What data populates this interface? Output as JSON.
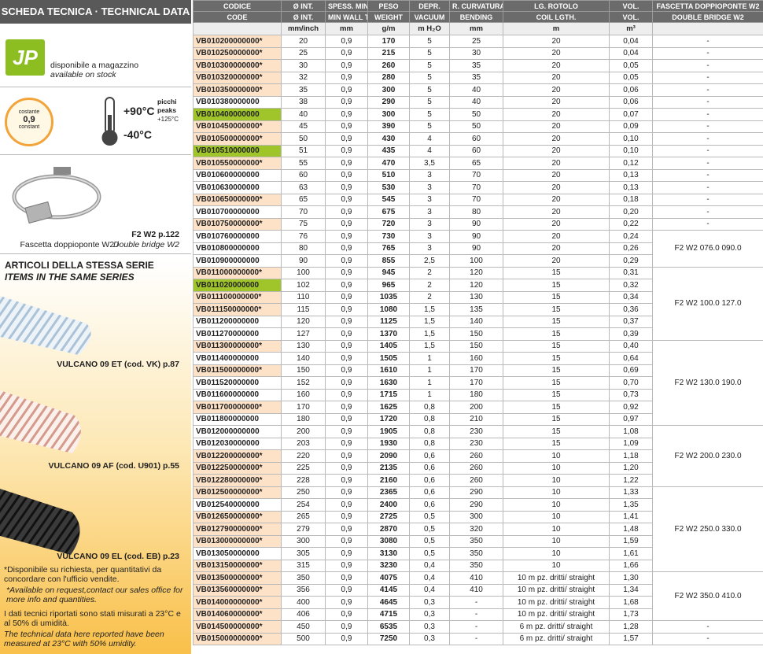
{
  "sidebar": {
    "title": "SCHEDA TECNICA · TECHNICAL DATA",
    "stock": {
      "logo": "JP",
      "it": "disponibile a magazzino",
      "en": "available on stock"
    },
    "thickness": {
      "top": "costante",
      "value": "0,9",
      "bottom": "constant"
    },
    "temperature": {
      "max": "+90°C",
      "peaks_it": "picchi",
      "peaks_en": "peaks",
      "peak": "+125°C",
      "min": "-40°C"
    },
    "clamp": {
      "code": "F2 W2 p.122",
      "desc_it": "Fascetta doppioponte W2 /",
      "desc_en": "Double bridge W2"
    },
    "series": {
      "title_it": "ARTICOLI DELLA STESSA SERIE",
      "title_en": "ITEMS IN THE SAME SERIES",
      "items": [
        "VULCANO 09 ET (cod. VK) p.87",
        "VULCANO 09 AF (cod. U901) p.55",
        "VULCANO 09 EL (cod. EB) p.23"
      ]
    },
    "notes": [
      "*Disponibile su richiesta, per quantitativi da concordare con l'ufficio vendite.",
      "*Available on request,contact our sales office for more info and quantities.",
      "I dati tecnici riportati sono stati misurati a 23°C e al 50% di umidità.",
      "The technical data here reported have been measured at 23°C with 50% umidity."
    ]
  },
  "table": {
    "header_it": [
      "CODICE",
      "Ø INT.",
      "SPESS. MIN.",
      "PESO",
      "DEPR.",
      "R. CURVATURA",
      "LG. ROTOLO",
      "VOL.",
      "FASCETTA DOPPIOPONTE W2"
    ],
    "header_en": [
      "CODE",
      "Ø INT.",
      "MIN WALL TH.",
      "WEIGHT",
      "VACUUM",
      "BENDING",
      "COIL LGTH.",
      "VOL.",
      "DOUBLE BRIDGE W2"
    ],
    "units": [
      "mm/inch",
      "mm",
      "g/m",
      "m H₂O",
      "mm",
      "m",
      "m³"
    ],
    "rows": [
      {
        "cells": [
          "VB010200000000*",
          "20",
          "0,9",
          "170",
          "5",
          "25",
          "20",
          "0,04",
          "-"
        ],
        "code_color": "#fde2c8"
      },
      {
        "cells": [
          "VB010250000000*",
          "25",
          "0,9",
          "215",
          "5",
          "30",
          "20",
          "0,04",
          "-"
        ],
        "code_color": "#fde2c8"
      },
      {
        "cells": [
          "VB010300000000*",
          "30",
          "0,9",
          "260",
          "5",
          "35",
          "20",
          "0,05",
          "-"
        ],
        "code_color": "#fde2c8"
      },
      {
        "cells": [
          "VB010320000000*",
          "32",
          "0,9",
          "280",
          "5",
          "35",
          "20",
          "0,05",
          "-"
        ],
        "code_color": "#fde2c8"
      },
      {
        "cells": [
          "VB010350000000*",
          "35",
          "0,9",
          "300",
          "5",
          "40",
          "20",
          "0,06",
          "-"
        ],
        "code_color": "#fde2c8"
      },
      {
        "cells": [
          "VB010380000000",
          "38",
          "0,9",
          "290",
          "5",
          "40",
          "20",
          "0,06",
          "-"
        ],
        "code_color": "#ffffff"
      },
      {
        "cells": [
          "VB010400000000",
          "40",
          "0,9",
          "300",
          "5",
          "50",
          "20",
          "0,07",
          "-"
        ],
        "code_color": "#9fc52a"
      },
      {
        "cells": [
          "VB010450000000*",
          "45",
          "0,9",
          "390",
          "5",
          "50",
          "20",
          "0,09",
          "-"
        ],
        "code_color": "#fde2c8"
      },
      {
        "cells": [
          "VB010500000000*",
          "50",
          "0,9",
          "430",
          "4",
          "60",
          "20",
          "0,10",
          "-"
        ],
        "code_color": "#fde2c8"
      },
      {
        "cells": [
          "VB010510000000",
          "51",
          "0,9",
          "435",
          "4",
          "60",
          "20",
          "0,10",
          "-"
        ],
        "code_color": "#9fc52a"
      },
      {
        "cells": [
          "VB010550000000*",
          "55",
          "0,9",
          "470",
          "3,5",
          "65",
          "20",
          "0,12",
          "-"
        ],
        "code_color": "#fde2c8"
      },
      {
        "cells": [
          "VB010600000000",
          "60",
          "0,9",
          "510",
          "3",
          "70",
          "20",
          "0,13",
          "-"
        ],
        "code_color": "#ffffff"
      },
      {
        "cells": [
          "VB010630000000",
          "63",
          "0,9",
          "530",
          "3",
          "70",
          "20",
          "0,13",
          "-"
        ],
        "code_color": "#ffffff"
      },
      {
        "cells": [
          "VB010650000000*",
          "65",
          "0,9",
          "545",
          "3",
          "70",
          "20",
          "0,18",
          "-"
        ],
        "code_color": "#fde2c8"
      },
      {
        "cells": [
          "VB010700000000",
          "70",
          "0,9",
          "675",
          "3",
          "80",
          "20",
          "0,20",
          "-"
        ],
        "code_color": "#ffffff"
      },
      {
        "cells": [
          "VB010750000000*",
          "75",
          "0,9",
          "720",
          "3",
          "90",
          "20",
          "0,22",
          "-"
        ],
        "code_color": "#fde2c8"
      },
      {
        "cells": [
          "VB010760000000",
          "76",
          "0,9",
          "730",
          "3",
          "90",
          "20",
          "0,24",
          "F2 W2 076.0 090.0"
        ],
        "code_color": "#ffffff"
      },
      {
        "cells": [
          "VB010800000000",
          "80",
          "0,9",
          "765",
          "3",
          "90",
          "20",
          "0,26",
          null
        ],
        "code_color": "#ffffff"
      },
      {
        "cells": [
          "VB010900000000",
          "90",
          "0,9",
          "855",
          "2,5",
          "100",
          "20",
          "0,29",
          null
        ],
        "code_color": "#ffffff"
      },
      {
        "cells": [
          "VB011000000000*",
          "100",
          "0,9",
          "945",
          "2",
          "120",
          "15",
          "0,31",
          "F2 W2 100.0 127.0"
        ],
        "code_color": "#fde2c8"
      },
      {
        "cells": [
          "VB011020000000",
          "102",
          "0,9",
          "965",
          "2",
          "120",
          "15",
          "0,32",
          null
        ],
        "code_color": "#9fc52a"
      },
      {
        "cells": [
          "VB011100000000*",
          "110",
          "0,9",
          "1035",
          "2",
          "130",
          "15",
          "0,34",
          null
        ],
        "code_color": "#fde2c8"
      },
      {
        "cells": [
          "VB011150000000*",
          "115",
          "0,9",
          "1080",
          "1,5",
          "135",
          "15",
          "0,36",
          null
        ],
        "code_color": "#fde2c8"
      },
      {
        "cells": [
          "VB011200000000",
          "120",
          "0,9",
          "1125",
          "1,5",
          "140",
          "15",
          "0,37",
          null
        ],
        "code_color": "#ffffff"
      },
      {
        "cells": [
          "VB011270000000",
          "127",
          "0,9",
          "1370",
          "1,5",
          "150",
          "15",
          "0,39",
          null
        ],
        "code_color": "#ffffff"
      },
      {
        "cells": [
          "VB011300000000*",
          "130",
          "0,9",
          "1405",
          "1,5",
          "150",
          "15",
          "0,40",
          "F2 W2 130.0 190.0"
        ],
        "code_color": "#fde2c8"
      },
      {
        "cells": [
          "VB011400000000",
          "140",
          "0,9",
          "1505",
          "1",
          "160",
          "15",
          "0,64",
          null
        ],
        "code_color": "#ffffff"
      },
      {
        "cells": [
          "VB011500000000*",
          "150",
          "0,9",
          "1610",
          "1",
          "170",
          "15",
          "0,69",
          null
        ],
        "code_color": "#fde2c8"
      },
      {
        "cells": [
          "VB011520000000",
          "152",
          "0,9",
          "1630",
          "1",
          "170",
          "15",
          "0,70",
          null
        ],
        "code_color": "#ffffff"
      },
      {
        "cells": [
          "VB011600000000",
          "160",
          "0,9",
          "1715",
          "1",
          "180",
          "15",
          "0,73",
          null
        ],
        "code_color": "#ffffff"
      },
      {
        "cells": [
          "VB011700000000*",
          "170",
          "0,9",
          "1625",
          "0,8",
          "200",
          "15",
          "0,92",
          null
        ],
        "code_color": "#fde2c8"
      },
      {
        "cells": [
          "VB011800000000",
          "180",
          "0,9",
          "1720",
          "0,8",
          "210",
          "15",
          "0,97",
          null
        ],
        "code_color": "#ffffff"
      },
      {
        "cells": [
          "VB012000000000",
          "200",
          "0,9",
          "1905",
          "0,8",
          "230",
          "15",
          "1,08",
          "F2 W2 200.0 230.0"
        ],
        "code_color": "#ffffff"
      },
      {
        "cells": [
          "VB012030000000",
          "203",
          "0,9",
          "1930",
          "0,8",
          "230",
          "15",
          "1,09",
          null
        ],
        "code_color": "#ffffff"
      },
      {
        "cells": [
          "VB012200000000*",
          "220",
          "0,9",
          "2090",
          "0,6",
          "260",
          "10",
          "1,18",
          null
        ],
        "code_color": "#fde2c8"
      },
      {
        "cells": [
          "VB012250000000*",
          "225",
          "0,9",
          "2135",
          "0,6",
          "260",
          "10",
          "1,20",
          null
        ],
        "code_color": "#fde2c8"
      },
      {
        "cells": [
          "VB012280000000*",
          "228",
          "0,9",
          "2160",
          "0,6",
          "260",
          "10",
          "1,22",
          null
        ],
        "code_color": "#fde2c8"
      },
      {
        "cells": [
          "VB012500000000*",
          "250",
          "0,9",
          "2365",
          "0,6",
          "290",
          "10",
          "1,33",
          "F2 W2 250.0 330.0"
        ],
        "code_color": "#fde2c8"
      },
      {
        "cells": [
          "VB012540000000",
          "254",
          "0,9",
          "2400",
          "0,6",
          "290",
          "10",
          "1,35",
          null
        ],
        "code_color": "#ffffff"
      },
      {
        "cells": [
          "VB012650000000*",
          "265",
          "0,9",
          "2725",
          "0,5",
          "300",
          "10",
          "1,41",
          null
        ],
        "code_color": "#fde2c8"
      },
      {
        "cells": [
          "VB012790000000*",
          "279",
          "0,9",
          "2870",
          "0,5",
          "320",
          "10",
          "1,48",
          null
        ],
        "code_color": "#fde2c8"
      },
      {
        "cells": [
          "VB013000000000*",
          "300",
          "0,9",
          "3080",
          "0,5",
          "350",
          "10",
          "1,59",
          null
        ],
        "code_color": "#fde2c8"
      },
      {
        "cells": [
          "VB013050000000",
          "305",
          "0,9",
          "3130",
          "0,5",
          "350",
          "10",
          "1,61",
          null
        ],
        "code_color": "#ffffff"
      },
      {
        "cells": [
          "VB013150000000*",
          "315",
          "0,9",
          "3230",
          "0,4",
          "350",
          "10",
          "1,66",
          null
        ],
        "code_color": "#fde2c8"
      },
      {
        "cells": [
          "VB013500000000*",
          "350",
          "0,9",
          "4075",
          "0,4",
          "410",
          "10 m pz. dritti/ straight",
          "1,30",
          "F2 W2 350.0 410.0"
        ],
        "code_color": "#fde2c8"
      },
      {
        "cells": [
          "VB013560000000*",
          "356",
          "0,9",
          "4145",
          "0,4",
          "410",
          "10 m pz. dritti/ straight",
          "1,34",
          null
        ],
        "code_color": "#fde2c8"
      },
      {
        "cells": [
          "VB014000000000*",
          "400",
          "0,9",
          "4645",
          "0,3",
          "-",
          "10 m pz. dritti/ straight",
          "1,68",
          null
        ],
        "code_color": "#fde2c8"
      },
      {
        "cells": [
          "VB014060000000*",
          "406",
          "0,9",
          "4715",
          "0,3",
          "-",
          "10 m pz. dritti/ straight",
          "1,73",
          null
        ],
        "code_color": "#fde2c8"
      },
      {
        "cells": [
          "VB014500000000*",
          "450",
          "0,9",
          "6535",
          "0,3",
          "-",
          "6 m pz. dritti/ straight",
          "1,28",
          "-"
        ],
        "code_color": "#fde2c8"
      },
      {
        "cells": [
          "VB015000000000*",
          "500",
          "0,9",
          "7250",
          "0,3",
          "-",
          "6 m pz. dritti/ straight",
          "1,57",
          "-"
        ],
        "code_color": "#fde2c8"
      }
    ]
  }
}
